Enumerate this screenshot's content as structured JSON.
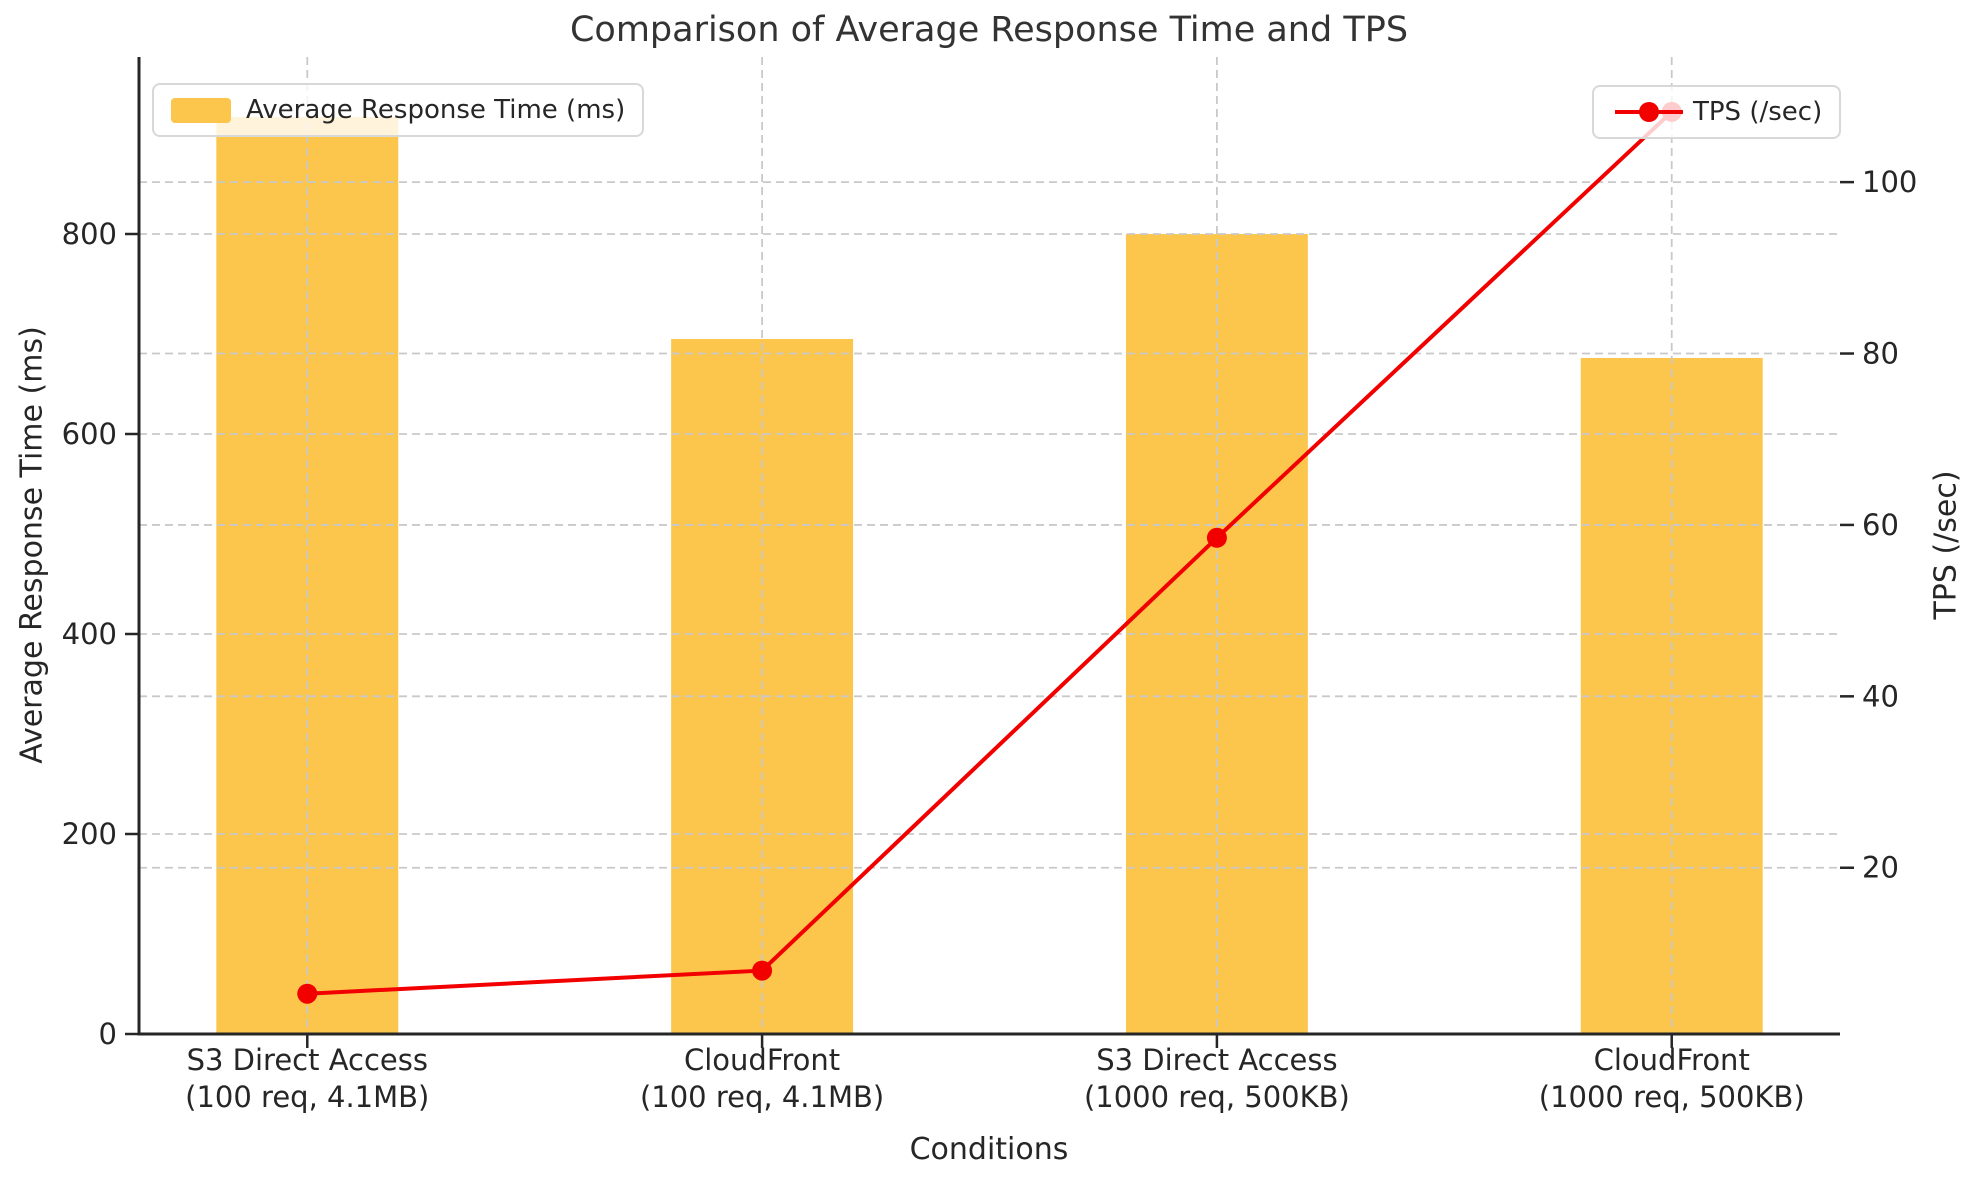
{
  "title": "Comparison of Average Response Time and TPS",
  "axes": {
    "x_label": "Conditions",
    "y_left_label": "Average Response Time (ms)",
    "y_right_label": "TPS (/sec)"
  },
  "legend": {
    "bars_label": "Average Response Time (ms)",
    "line_label": "TPS (/sec)"
  },
  "chart_data": {
    "type": "bar",
    "title": "Comparison of Average Response Time and TPS",
    "categories": [
      "S3 Direct Access\n(100 req, 4.1MB)",
      "CloudFront\n(100 req, 4.1MB)",
      "S3 Direct Access\n(1000 req, 500KB)",
      "CloudFront\n(1000 req, 500KB)"
    ],
    "series": [
      {
        "name": "Average Response Time (ms)",
        "type": "bar",
        "axis": "left",
        "color": "#FCC64C",
        "values": [
          917,
          695,
          800,
          676
        ]
      },
      {
        "name": "TPS (/sec)",
        "type": "line",
        "axis": "right",
        "color": "#F20000",
        "values": [
          5.3,
          8.0,
          58.5,
          108.2
        ]
      }
    ],
    "xlabel": "Conditions",
    "ylabel_left": "Average Response Time (ms)",
    "ylabel_right": "TPS (/sec)",
    "y_left_ticks": [
      0,
      200,
      400,
      600,
      800
    ],
    "y_right_ticks": [
      20,
      40,
      60,
      80,
      100
    ],
    "ylim_left": [
      0,
      977
    ],
    "ylim_right": [
      0.6,
      114.6
    ],
    "grid": true,
    "legend_positions": [
      "upper left",
      "upper right"
    ]
  }
}
